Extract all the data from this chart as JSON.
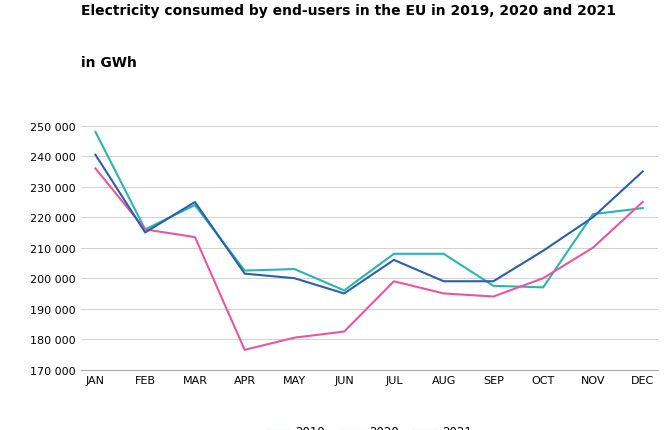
{
  "title_line1": "Electricity consumed by end-users in the EU in 2019, 2020 and 2021",
  "title_line2": "in GWh",
  "months": [
    "JAN",
    "FEB",
    "MAR",
    "APR",
    "MAY",
    "JUN",
    "JUL",
    "AUG",
    "SEP",
    "OCT",
    "NOV",
    "DEC"
  ],
  "series": {
    "2019": [
      248000,
      216000,
      224000,
      202500,
      203000,
      196000,
      208000,
      208000,
      197500,
      197000,
      221000,
      223000
    ],
    "2020": [
      236000,
      216000,
      213500,
      176500,
      180500,
      182500,
      199000,
      195000,
      194000,
      200000,
      210000,
      225000
    ],
    "2021": [
      240500,
      215000,
      225000,
      201500,
      200000,
      195000,
      206000,
      199000,
      199000,
      209000,
      220000,
      235000
    ]
  },
  "colors": {
    "2019": "#2AB5AD",
    "2020": "#E8579A",
    "2021": "#2C5FA8"
  },
  "ylim": [
    170000,
    252000
  ],
  "yticks": [
    170000,
    180000,
    190000,
    200000,
    210000,
    220000,
    230000,
    240000,
    250000
  ],
  "ytick_labels": [
    "170 000",
    "180 000",
    "190 000",
    "200 000",
    "210 000",
    "220 000",
    "230 000",
    "240 000",
    "250 000"
  ],
  "background_color": "#ffffff",
  "grid_color": "#d0d0d0",
  "linewidth": 1.5,
  "title_fontsize": 10,
  "tick_fontsize": 8
}
